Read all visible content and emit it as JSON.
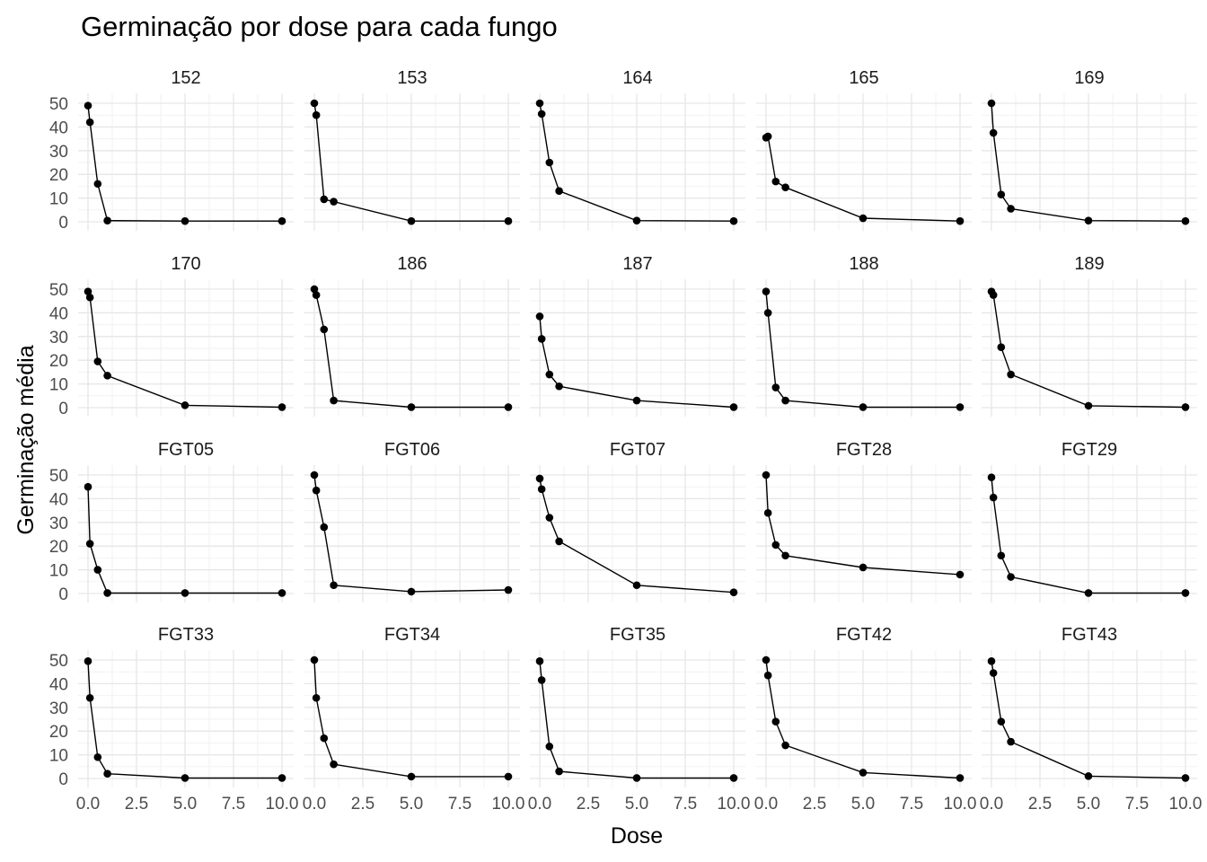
{
  "chart_data": {
    "type": "line",
    "title": "Germinação por dose para cada fungo",
    "xlabel": "Dose",
    "ylabel": "Germinação média",
    "x": [
      0,
      0.1,
      0.5,
      1,
      5,
      10
    ],
    "xlim": [
      0,
      10
    ],
    "ylim": [
      0,
      50
    ],
    "x_ticks": [
      "0.0",
      "2.5",
      "5.0",
      "7.5",
      "10.0"
    ],
    "y_ticks": [
      "0",
      "10",
      "20",
      "30",
      "40",
      "50"
    ],
    "grid": true,
    "facets": [
      {
        "label": "152",
        "values": [
          49,
          42,
          16,
          0.5,
          0.3,
          0.3
        ]
      },
      {
        "label": "153",
        "values": [
          50,
          45,
          9.5,
          8.5,
          0.3,
          0.3
        ]
      },
      {
        "label": "164",
        "values": [
          50,
          45.5,
          25,
          13,
          0.5,
          0.3
        ]
      },
      {
        "label": "165",
        "values": [
          35.5,
          36,
          17,
          14.5,
          1.5,
          0.3
        ]
      },
      {
        "label": "169",
        "values": [
          50,
          37.5,
          11.5,
          5.5,
          0.5,
          0.3
        ]
      },
      {
        "label": "170",
        "values": [
          49,
          46.5,
          19.5,
          13.5,
          1,
          0.2
        ]
      },
      {
        "label": "186",
        "values": [
          50,
          47.5,
          33,
          3,
          0.2,
          0.2
        ]
      },
      {
        "label": "187",
        "values": [
          38.5,
          29,
          14,
          9,
          3,
          0.2
        ]
      },
      {
        "label": "188",
        "values": [
          49,
          40,
          8.5,
          3,
          0.2,
          0.2
        ]
      },
      {
        "label": "189",
        "values": [
          49,
          47.5,
          25.5,
          14,
          0.8,
          0.2
        ]
      },
      {
        "label": "FGT05",
        "values": [
          45,
          21,
          10,
          0.2,
          0.2,
          0.2
        ]
      },
      {
        "label": "FGT06",
        "values": [
          50,
          43.5,
          28,
          3.5,
          0.8,
          1.5
        ]
      },
      {
        "label": "FGT07",
        "values": [
          48.5,
          44,
          32,
          22,
          3.5,
          0.5
        ]
      },
      {
        "label": "FGT28",
        "values": [
          50,
          34,
          20.5,
          16,
          11,
          8
        ]
      },
      {
        "label": "FGT29",
        "values": [
          49,
          40.5,
          16,
          7,
          0.2,
          0.2
        ]
      },
      {
        "label": "FGT33",
        "values": [
          49.5,
          34,
          9,
          2,
          0.2,
          0.2
        ]
      },
      {
        "label": "FGT34",
        "values": [
          50,
          34,
          17,
          6,
          0.8,
          0.8
        ]
      },
      {
        "label": "FGT35",
        "values": [
          49.5,
          41.5,
          13.5,
          3,
          0.2,
          0.2
        ]
      },
      {
        "label": "FGT42",
        "values": [
          50,
          43.5,
          24,
          14,
          2.5,
          0.2
        ]
      },
      {
        "label": "FGT43",
        "values": [
          49.5,
          44.5,
          24,
          15.5,
          1,
          0.2
        ]
      }
    ]
  }
}
